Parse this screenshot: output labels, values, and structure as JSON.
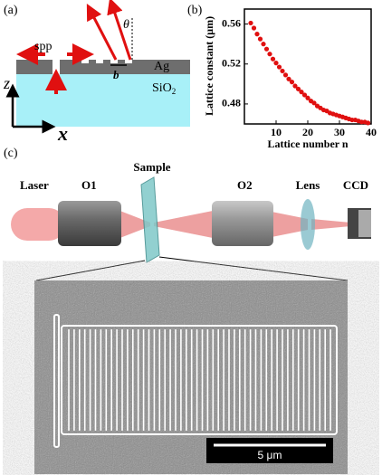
{
  "panel_a": {
    "label": "(a)",
    "spp": "spp",
    "theta": "θ",
    "metal": "Ag",
    "substrate": "SiO",
    "substrate_sub": "2",
    "z": "z",
    "x": "x",
    "period": "b"
  },
  "chart_data": {
    "type": "scatter",
    "label": "(b)",
    "xlabel": "Lattice number n",
    "ylabel": "Lattice constant (μm)",
    "x": [
      2,
      3,
      4,
      5,
      6,
      7,
      8,
      9,
      10,
      11,
      12,
      13,
      14,
      15,
      16,
      17,
      18,
      19,
      20,
      21,
      22,
      23,
      24,
      25,
      26,
      27,
      28,
      29,
      30,
      31,
      32,
      33,
      34,
      35,
      36,
      37,
      38,
      39
    ],
    "y": [
      0.561,
      0.556,
      0.55,
      0.545,
      0.54,
      0.535,
      0.53,
      0.525,
      0.521,
      0.517,
      0.513,
      0.509,
      0.505,
      0.502,
      0.498,
      0.495,
      0.492,
      0.489,
      0.486,
      0.483,
      0.481,
      0.478,
      0.476,
      0.474,
      0.473,
      0.471,
      0.47,
      0.469,
      0.468,
      0.467,
      0.466,
      0.465,
      0.464,
      0.464,
      0.463,
      0.462,
      0.462,
      0.461
    ],
    "color": "#e01010",
    "xlim": [
      0,
      40
    ],
    "ylim": [
      0.46,
      0.575
    ],
    "xticks": [
      10,
      20,
      30,
      40
    ],
    "yticks": [
      0.48,
      0.52,
      0.56
    ]
  },
  "panel_c": {
    "label": "(c)",
    "laser": "Laser",
    "objective1": "O1",
    "sample": "Sample",
    "objective2": "O2",
    "lens": "Lens",
    "camera": "CCD",
    "scale_bar": "5 μm"
  }
}
